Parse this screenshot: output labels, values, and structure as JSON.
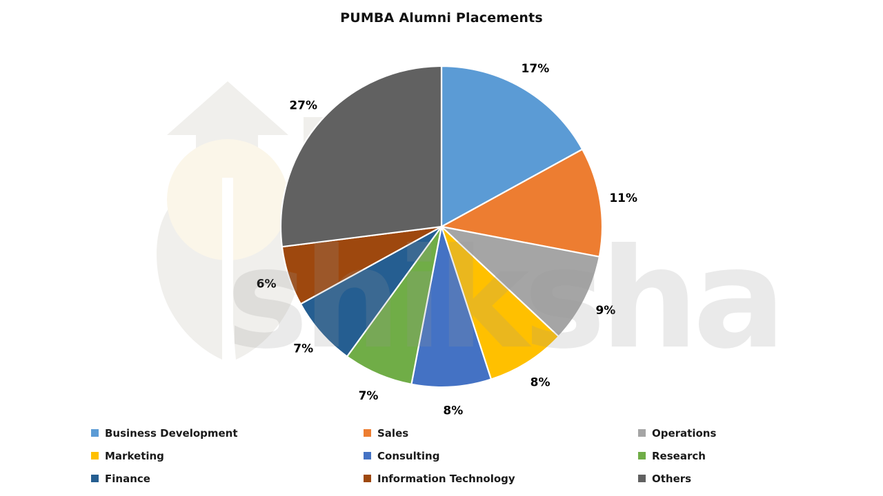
{
  "title": "PUMBA Alumni Placements",
  "watermark": {
    "text": "shiksha",
    "logo": "shiksha-graduation-logo"
  },
  "chart_data": {
    "type": "pie",
    "title": "PUMBA Alumni Placements",
    "start_angle_deg": 0,
    "direction": "clockwise",
    "labels": "outside-percent",
    "value_suffix": "%",
    "legend_position": "bottom",
    "legend_columns": 3,
    "background_color": "#ffffff",
    "label_color": "#000000",
    "segments": [
      {
        "label": "Business Development",
        "value": 17,
        "display": "17%",
        "color": "#5B9BD5"
      },
      {
        "label": "Sales",
        "value": 11,
        "display": "11%",
        "color": "#ED7D31"
      },
      {
        "label": "Operations",
        "value": 9,
        "display": "9%",
        "color": "#A5A5A5"
      },
      {
        "label": "Marketing",
        "value": 8,
        "display": "8%",
        "color": "#FFC000"
      },
      {
        "label": "Consulting",
        "value": 8,
        "display": "8%",
        "color": "#4472C4"
      },
      {
        "label": "Research",
        "value": 7,
        "display": "7%",
        "color": "#70AD47"
      },
      {
        "label": "Finance",
        "value": 7,
        "display": "7%",
        "color": "#255E91"
      },
      {
        "label": "Information Technology",
        "value": 6,
        "display": "6%",
        "color": "#9E480E"
      },
      {
        "label": "Others",
        "value": 27,
        "display": "27%",
        "color": "#616161"
      }
    ]
  }
}
